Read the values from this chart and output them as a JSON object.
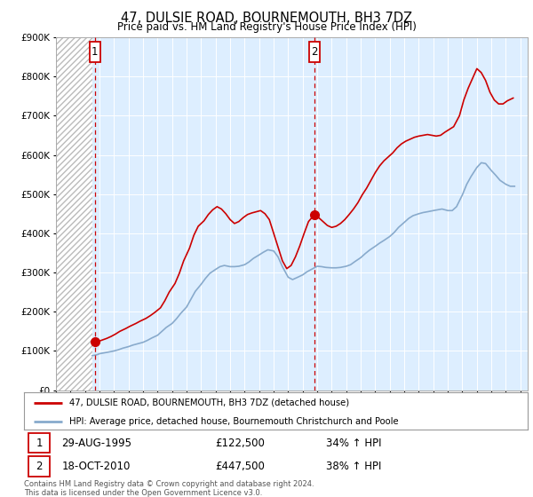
{
  "title": "47, DULSIE ROAD, BOURNEMOUTH, BH3 7DZ",
  "subtitle": "Price paid vs. HM Land Registry's House Price Index (HPI)",
  "ytick_values": [
    0,
    100000,
    200000,
    300000,
    400000,
    500000,
    600000,
    700000,
    800000,
    900000
  ],
  "ylim": [
    0,
    900000
  ],
  "xlim_start": 1993.0,
  "xlim_end": 2025.5,
  "hatch_end": 1995.5,
  "sale1_x": 1995.67,
  "sale1_y": 122500,
  "sale1_label": "1",
  "sale1_date": "29-AUG-1995",
  "sale1_price": "£122,500",
  "sale1_hpi": "34% ↑ HPI",
  "sale2_x": 2010.8,
  "sale2_y": 447500,
  "sale2_label": "2",
  "sale2_date": "18-OCT-2010",
  "sale2_price": "£447,500",
  "sale2_hpi": "38% ↑ HPI",
  "red_line_color": "#cc0000",
  "blue_line_color": "#88aacc",
  "hatch_color": "#bbbbbb",
  "plot_bg_color": "#ddeeff",
  "legend_line1": "47, DULSIE ROAD, BOURNEMOUTH, BH3 7DZ (detached house)",
  "legend_line2": "HPI: Average price, detached house, Bournemouth Christchurch and Poole",
  "footnote": "Contains HM Land Registry data © Crown copyright and database right 2024.\nThis data is licensed under the Open Government Licence v3.0.",
  "hpi_data_x": [
    1995.5,
    1995.8,
    1996.0,
    1996.3,
    1996.6,
    1997.0,
    1997.3,
    1997.6,
    1998.0,
    1998.3,
    1998.6,
    1999.0,
    1999.3,
    1999.6,
    2000.0,
    2000.3,
    2000.6,
    2001.0,
    2001.3,
    2001.6,
    2002.0,
    2002.3,
    2002.6,
    2003.0,
    2003.3,
    2003.6,
    2004.0,
    2004.3,
    2004.6,
    2005.0,
    2005.3,
    2005.6,
    2006.0,
    2006.3,
    2006.6,
    2007.0,
    2007.3,
    2007.6,
    2008.0,
    2008.3,
    2008.6,
    2009.0,
    2009.3,
    2009.6,
    2010.0,
    2010.3,
    2010.6,
    2010.8,
    2011.0,
    2011.3,
    2011.6,
    2012.0,
    2012.3,
    2012.6,
    2013.0,
    2013.3,
    2013.6,
    2014.0,
    2014.3,
    2014.6,
    2015.0,
    2015.3,
    2015.6,
    2016.0,
    2016.3,
    2016.6,
    2017.0,
    2017.3,
    2017.6,
    2018.0,
    2018.3,
    2018.6,
    2019.0,
    2019.3,
    2019.6,
    2020.0,
    2020.3,
    2020.6,
    2021.0,
    2021.3,
    2021.6,
    2022.0,
    2022.3,
    2022.6,
    2023.0,
    2023.3,
    2023.6,
    2024.0,
    2024.3,
    2024.6
  ],
  "hpi_data_y": [
    88000,
    90000,
    93000,
    95000,
    97000,
    100000,
    103000,
    107000,
    111000,
    115000,
    118000,
    122000,
    127000,
    133000,
    140000,
    150000,
    160000,
    170000,
    182000,
    196000,
    212000,
    232000,
    252000,
    270000,
    285000,
    298000,
    308000,
    315000,
    318000,
    315000,
    315000,
    316000,
    320000,
    327000,
    336000,
    345000,
    352000,
    358000,
    355000,
    340000,
    315000,
    288000,
    282000,
    287000,
    294000,
    302000,
    308000,
    312000,
    316000,
    315000,
    313000,
    312000,
    312000,
    313000,
    316000,
    320000,
    328000,
    338000,
    348000,
    357000,
    367000,
    375000,
    382000,
    392000,
    402000,
    415000,
    428000,
    438000,
    445000,
    450000,
    453000,
    455000,
    458000,
    460000,
    462000,
    458000,
    458000,
    468000,
    498000,
    525000,
    545000,
    568000,
    580000,
    578000,
    560000,
    548000,
    535000,
    525000,
    520000,
    520000
  ],
  "red_data_x": [
    1995.67,
    1995.9,
    1996.2,
    1996.5,
    1996.8,
    1997.1,
    1997.4,
    1997.8,
    1998.1,
    1998.5,
    1998.8,
    1999.2,
    1999.5,
    1999.8,
    2000.2,
    2000.5,
    2000.8,
    2001.2,
    2001.5,
    2001.8,
    2002.2,
    2002.5,
    2002.8,
    2003.2,
    2003.5,
    2003.8,
    2004.1,
    2004.4,
    2004.7,
    2005.0,
    2005.3,
    2005.6,
    2005.9,
    2006.2,
    2006.5,
    2006.8,
    2007.1,
    2007.4,
    2007.7,
    2008.0,
    2008.3,
    2008.6,
    2008.9,
    2009.2,
    2009.5,
    2009.8,
    2010.1,
    2010.4,
    2010.8,
    2011.1,
    2011.4,
    2011.7,
    2012.0,
    2012.3,
    2012.6,
    2012.9,
    2013.2,
    2013.5,
    2013.8,
    2014.1,
    2014.4,
    2014.7,
    2015.0,
    2015.3,
    2015.6,
    2015.9,
    2016.2,
    2016.5,
    2016.8,
    2017.1,
    2017.4,
    2017.7,
    2018.0,
    2018.3,
    2018.6,
    2018.9,
    2019.2,
    2019.5,
    2019.8,
    2020.1,
    2020.4,
    2020.8,
    2021.1,
    2021.4,
    2021.7,
    2022.0,
    2022.3,
    2022.6,
    2022.9,
    2023.2,
    2023.5,
    2023.8,
    2024.1,
    2024.5
  ],
  "red_data_y": [
    122500,
    124000,
    128000,
    132000,
    137000,
    143000,
    150000,
    157000,
    163000,
    170000,
    176000,
    183000,
    190000,
    198000,
    210000,
    228000,
    250000,
    272000,
    298000,
    330000,
    362000,
    395000,
    418000,
    432000,
    448000,
    460000,
    468000,
    462000,
    450000,
    435000,
    425000,
    430000,
    440000,
    448000,
    452000,
    455000,
    458000,
    450000,
    435000,
    400000,
    365000,
    330000,
    310000,
    318000,
    340000,
    368000,
    400000,
    430000,
    447500,
    440000,
    430000,
    420000,
    415000,
    418000,
    425000,
    435000,
    448000,
    462000,
    478000,
    498000,
    515000,
    535000,
    555000,
    572000,
    585000,
    595000,
    605000,
    618000,
    628000,
    635000,
    640000,
    645000,
    648000,
    650000,
    652000,
    650000,
    648000,
    650000,
    658000,
    665000,
    672000,
    700000,
    740000,
    770000,
    795000,
    820000,
    810000,
    790000,
    760000,
    740000,
    730000,
    730000,
    738000,
    745000
  ]
}
